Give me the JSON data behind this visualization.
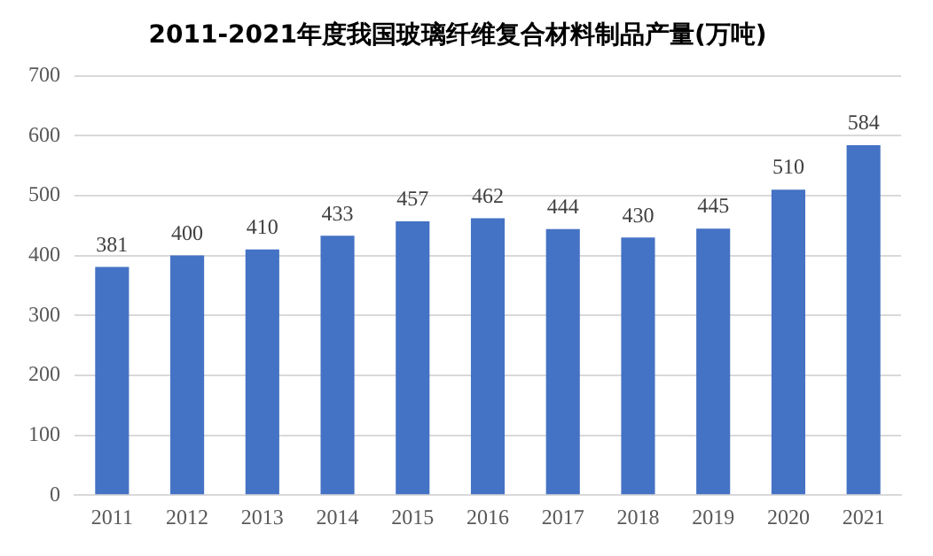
{
  "chart_data": {
    "type": "bar",
    "title": "2011-2021年度我国玻璃纤维复合材料制品产量(万吨)",
    "categories": [
      "2011",
      "2012",
      "2013",
      "2014",
      "2015",
      "2016",
      "2017",
      "2018",
      "2019",
      "2020",
      "2021"
    ],
    "values": [
      381,
      400,
      410,
      433,
      457,
      462,
      444,
      430,
      445,
      510,
      584
    ],
    "color": "#4472c4",
    "ylim": [
      0,
      700
    ],
    "yticks": [
      0,
      100,
      200,
      300,
      400,
      500,
      600,
      700
    ],
    "grid": "y",
    "data_labels": true
  }
}
